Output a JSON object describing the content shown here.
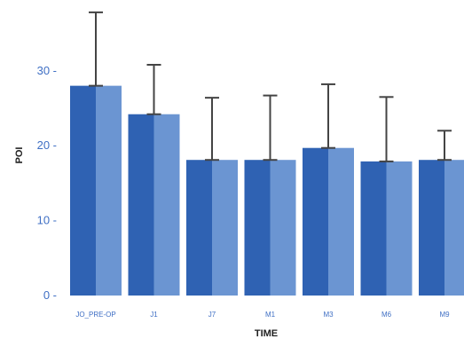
{
  "chart_data": {
    "type": "bar",
    "title": "",
    "xlabel": "TIME",
    "ylabel": "POI",
    "categories": [
      "JO_PRE-OP",
      "J1",
      "J7",
      "M1",
      "M3",
      "M6",
      "M9"
    ],
    "values": [
      28,
      24.2,
      18.1,
      18.1,
      19.7,
      17.9,
      18.1
    ],
    "error_upper": [
      37.8,
      30.8,
      26.4,
      26.7,
      28.2,
      26.5,
      22
    ],
    "yticks": [
      0,
      10,
      20,
      30
    ],
    "ylim": [
      0,
      38.5
    ],
    "grid": false,
    "colors": {
      "bar_dark": "#2f62b3",
      "bar_light": "#6b95d2",
      "error_bar": "#444444",
      "tick_text": "#3f6fc4"
    }
  }
}
